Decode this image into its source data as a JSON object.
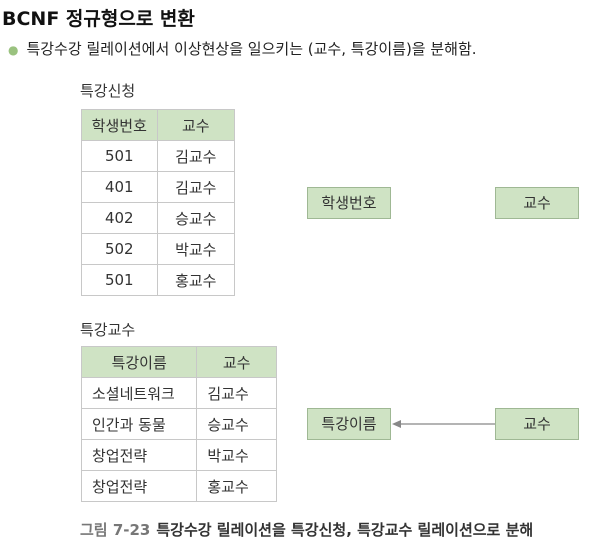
{
  "heading": "BCNF 정규형으로 변환",
  "bullet": "특강수강 릴레이션에서 이상현상을 일으키는 (교수, 특강이름)을 분해함.",
  "table1": {
    "caption": "특강신청",
    "headers": [
      "학생번호",
      "교수"
    ],
    "rows": [
      [
        "501",
        "김교수"
      ],
      [
        "401",
        "김교수"
      ],
      [
        "402",
        "승교수"
      ],
      [
        "502",
        "박교수"
      ],
      [
        "501",
        "홍교수"
      ]
    ]
  },
  "table2": {
    "caption": "특강교수",
    "headers": [
      "특강이름",
      "교수"
    ],
    "rows": [
      [
        "소셜네트워크",
        "김교수"
      ],
      [
        "인간과 동물",
        "승교수"
      ],
      [
        "창업전략",
        "박교수"
      ],
      [
        "창업전략",
        "홍교수"
      ]
    ]
  },
  "fd1": {
    "left": "학생번호",
    "right": "교수"
  },
  "fd2": {
    "left": "특강이름",
    "right": "교수"
  },
  "figure_caption": {
    "number": "그림 7-23",
    "text": "특강수강 릴레이션을 특강신청, 특강교수 릴레이션으로 분해"
  },
  "colors": {
    "header_fill": "#cfe3c4",
    "bullet": "#9ac27f",
    "arrow": "#888888"
  }
}
